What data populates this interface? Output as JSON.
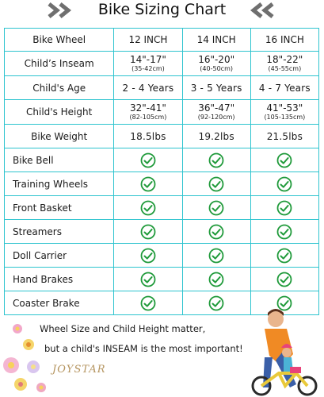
{
  "title": "Bike Sizing Chart",
  "columns": [
    "Bike Wheel",
    "12 INCH",
    "14 INCH",
    "16 INCH"
  ],
  "rows": {
    "inseam": {
      "label": "Child’s Inseam",
      "values": [
        {
          "range": "14\"-17\"",
          "metric": "(35-42cm)"
        },
        {
          "range": "16\"-20\"",
          "metric": "(40-50cm)"
        },
        {
          "range": "18\"-22\"",
          "metric": "(45-55cm)"
        }
      ]
    },
    "age": {
      "label": "Child's Age",
      "values": [
        "2 - 4 Years",
        "3 - 5 Years",
        "4 - 7 Years"
      ]
    },
    "height": {
      "label": "Child's Height",
      "values": [
        {
          "range": "32\"-41\"",
          "metric": "(82-105cm)"
        },
        {
          "range": "36\"-47\"",
          "metric": "(92-120cm)"
        },
        {
          "range": "41\"-53\"",
          "metric": "(105-135cm)"
        }
      ]
    },
    "weight": {
      "label": "Bike Weight",
      "values": [
        "18.5lbs",
        "19.2lbs",
        "21.5lbs"
      ]
    }
  },
  "feature_rows": [
    "Bike Bell",
    "Training Wheels",
    "Front Basket",
    "Streamers",
    "Doll Carrier",
    "Hand Brakes",
    "Coaster Brake"
  ],
  "feature_icon": "check-circle-icon",
  "footer": {
    "line1": "Wheel Size and Child Height matter,",
    "line2": "but a child's INSEAM is the most important!",
    "logo": "JOYSTAR"
  },
  "colors": {
    "grid": "#2ec4cf",
    "check": "#1f9a3a",
    "chevron": "#6f6f6f"
  }
}
